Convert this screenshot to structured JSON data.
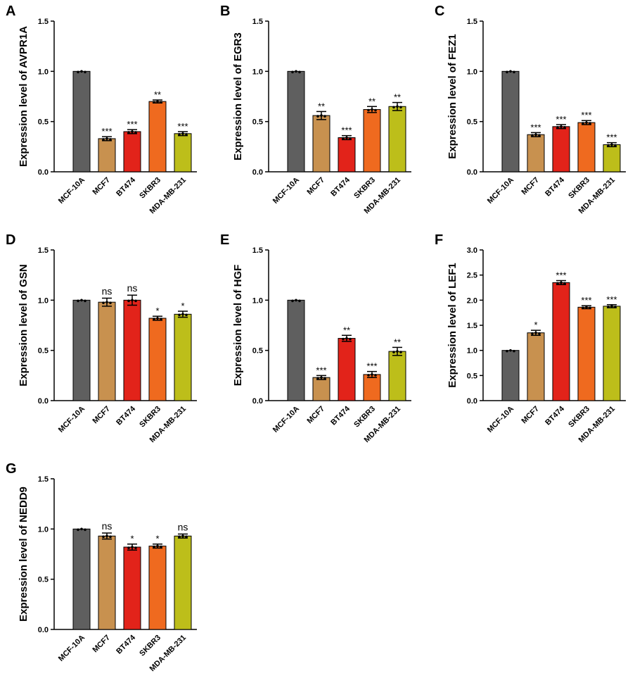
{
  "colors": {
    "bars": [
      "#5f5f5f",
      "#c8914f",
      "#e2231a",
      "#ef6a1f",
      "#bdbe1a"
    ],
    "axis": "#000000"
  },
  "chart_data": [
    {
      "type": "bar",
      "panel": "A",
      "ylabel": "Expression level of AVPR1A",
      "categories": [
        "MCF-10A",
        "MCF7",
        "BT474",
        "SKBR3",
        "MDA-MB-231"
      ],
      "values": [
        1.0,
        0.33,
        0.4,
        0.7,
        0.38
      ],
      "errors": [
        0.0,
        0.02,
        0.02,
        0.015,
        0.02
      ],
      "significance": [
        "",
        "***",
        "***",
        "**",
        "***"
      ],
      "ylim": [
        0,
        1.5
      ],
      "yticks": [
        "0.0",
        "0.5",
        "1.0",
        "1.5"
      ]
    },
    {
      "type": "bar",
      "panel": "B",
      "ylabel": "Expression level of EGR3",
      "categories": [
        "MCF-10A",
        "MCF7",
        "BT474",
        "SKBR3",
        "MDA-MB-231"
      ],
      "values": [
        1.0,
        0.56,
        0.34,
        0.62,
        0.65
      ],
      "errors": [
        0.0,
        0.04,
        0.02,
        0.03,
        0.04
      ],
      "significance": [
        "",
        "**",
        "***",
        "**",
        "**"
      ],
      "ylim": [
        0,
        1.5
      ],
      "yticks": [
        "0.0",
        "0.5",
        "1.0",
        "1.5"
      ]
    },
    {
      "type": "bar",
      "panel": "C",
      "ylabel": "Expression level of FEZ1",
      "categories": [
        "MCF-10A",
        "MCF7",
        "BT474",
        "SKBR3",
        "MDA-MB-231"
      ],
      "values": [
        1.0,
        0.37,
        0.45,
        0.49,
        0.27
      ],
      "errors": [
        0.0,
        0.02,
        0.02,
        0.02,
        0.02
      ],
      "significance": [
        "",
        "***",
        "***",
        "***",
        "***"
      ],
      "ylim": [
        0,
        1.5
      ],
      "yticks": [
        "0.0",
        "0.5",
        "1.0",
        "1.5"
      ]
    },
    {
      "type": "bar",
      "panel": "D",
      "ylabel": "Expression level of GSN",
      "categories": [
        "MCF-10A",
        "MCF7",
        "BT474",
        "SKBR3",
        "MDA-MB-231"
      ],
      "values": [
        1.0,
        0.98,
        1.0,
        0.82,
        0.86
      ],
      "errors": [
        0.0,
        0.04,
        0.05,
        0.02,
        0.03
      ],
      "significance": [
        "",
        "ns",
        "ns",
        "*",
        "*"
      ],
      "ylim": [
        0,
        1.5
      ],
      "yticks": [
        "0.0",
        "0.5",
        "1.0",
        "1.5"
      ]
    },
    {
      "type": "bar",
      "panel": "E",
      "ylabel": "Expression level of HGF",
      "categories": [
        "MCF-10A",
        "MCF7",
        "BT474",
        "SKBR3",
        "MDA-MB-231"
      ],
      "values": [
        1.0,
        0.23,
        0.62,
        0.26,
        0.49
      ],
      "errors": [
        0.0,
        0.02,
        0.03,
        0.03,
        0.04
      ],
      "significance": [
        "",
        "***",
        "**",
        "***",
        "**"
      ],
      "ylim": [
        0,
        1.5
      ],
      "yticks": [
        "0.0",
        "0.5",
        "1.0",
        "1.5"
      ]
    },
    {
      "type": "bar",
      "panel": "F",
      "ylabel": "Expression level of LEF1",
      "categories": [
        "MCF-10A",
        "MCF7",
        "BT474",
        "SKBR3",
        "MDA-MB-231"
      ],
      "values": [
        1.0,
        1.35,
        2.35,
        1.86,
        1.88
      ],
      "errors": [
        0.0,
        0.05,
        0.04,
        0.03,
        0.03
      ],
      "significance": [
        "",
        "*",
        "***",
        "***",
        "***"
      ],
      "ylim": [
        0,
        3.0
      ],
      "yticks": [
        "0.0",
        "0.5",
        "1.0",
        "1.5",
        "2.0",
        "2.5",
        "3.0"
      ]
    },
    {
      "type": "bar",
      "panel": "G",
      "ylabel": "Expression level of NEDD9",
      "categories": [
        "MCF-10A",
        "MCF7",
        "BT474",
        "SKBR3",
        "MDA-MB-231"
      ],
      "values": [
        1.0,
        0.93,
        0.82,
        0.83,
        0.93
      ],
      "errors": [
        0.0,
        0.03,
        0.03,
        0.02,
        0.02
      ],
      "significance": [
        "",
        "ns",
        "*",
        "*",
        "ns"
      ],
      "ylim": [
        0,
        1.5
      ],
      "yticks": [
        "0.0",
        "0.5",
        "1.0",
        "1.5"
      ]
    }
  ]
}
